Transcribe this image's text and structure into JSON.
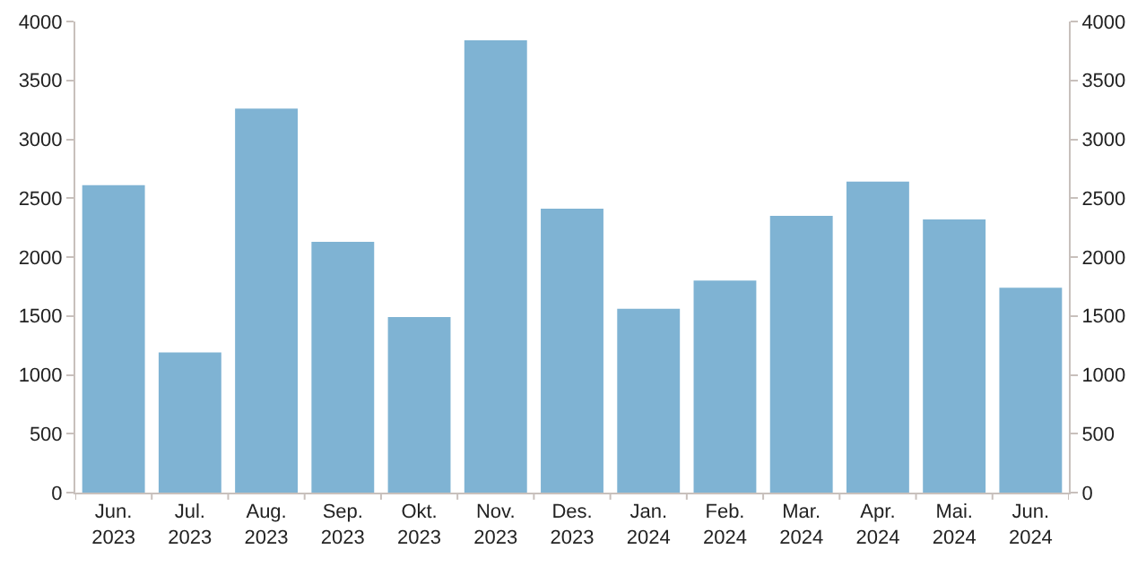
{
  "chart_data": {
    "type": "bar",
    "categories": [
      "Jun.\n2023",
      "Jul.\n2023",
      "Aug.\n2023",
      "Sep.\n2023",
      "Okt.\n2023",
      "Nov.\n2023",
      "Des.\n2023",
      "Jan.\n2024",
      "Feb.\n2024",
      "Mar.\n2024",
      "Apr.\n2024",
      "Mai.\n2024",
      "Jun.\n2024"
    ],
    "values": [
      2610,
      1190,
      3260,
      2130,
      1490,
      3840,
      2410,
      1560,
      1800,
      2350,
      2640,
      2320,
      1740
    ],
    "color": "#7fb3d3",
    "ylim": [
      0,
      4000
    ],
    "yticks": [
      0,
      500,
      1000,
      1500,
      2000,
      2500,
      3000,
      3500,
      4000
    ],
    "y2lim": [
      0,
      4000
    ],
    "y2ticks": [
      0,
      500,
      1000,
      1500,
      2000,
      2500,
      3000,
      3500,
      4000
    ]
  }
}
